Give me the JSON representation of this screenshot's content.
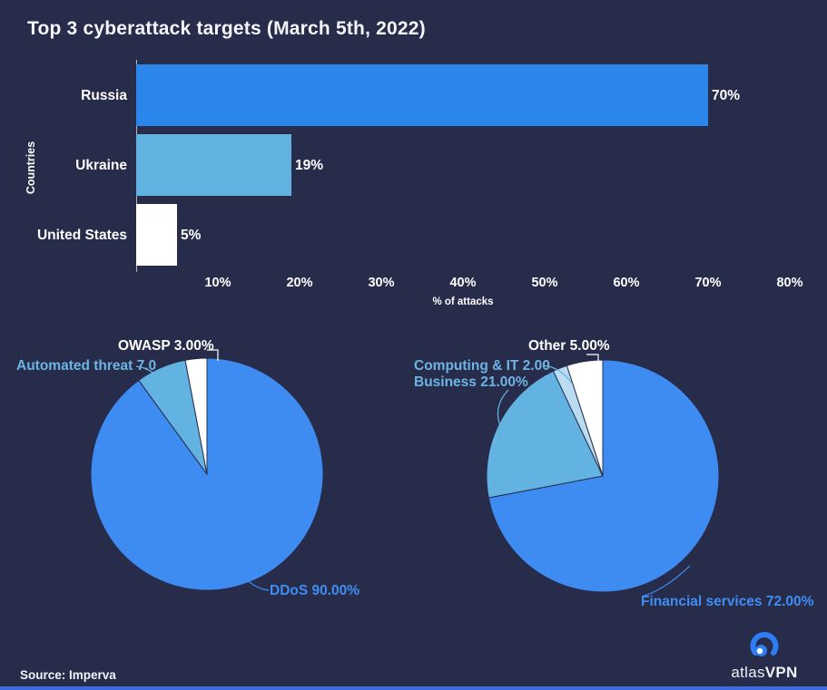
{
  "title": "Top 3 cyberattack targets (March 5th, 2022)",
  "source": "Source: Imperva",
  "logo": {
    "brand_light": "atlas",
    "brand_bold": "VPN"
  },
  "colors": {
    "background": "#282c4b",
    "bar_blue": "#2b86ec",
    "pie_blue": "#3e8bf2",
    "light_blue": "#62b3e2",
    "pale_blue": "#b9dcf1",
    "white": "#ffffff",
    "label_blue": "#3f8df3",
    "label_light_blue": "#6cb5e3",
    "bottom_strip": "#3d6ce0",
    "logo_blue": "#2d7df5"
  },
  "chart_data": [
    {
      "type": "bar",
      "orientation": "horizontal",
      "title": "Top 3 cyberattack targets (March 5th, 2022)",
      "categories": [
        "Russia",
        "Ukraine",
        "United States"
      ],
      "values": [
        70,
        19,
        5
      ],
      "bar_labels": [
        "70%",
        "19%",
        "5%"
      ],
      "bar_colors": [
        "#2b86ec",
        "#62b3e2",
        "#ffffff"
      ],
      "xlabel": "% of attacks",
      "ylabel": "Countries",
      "xlim": [
        0,
        80
      ],
      "xticks": [
        "10%",
        "20%",
        "30%",
        "40%",
        "50%",
        "60%",
        "70%",
        "80%"
      ],
      "grid": false,
      "legend": false
    },
    {
      "type": "pie",
      "name": "attack-types",
      "labels": [
        "DDoS",
        "Automated threat",
        "OWASP"
      ],
      "values": [
        90,
        7,
        3
      ],
      "display_labels": [
        "DDoS 90.00%",
        "Automated threat 7.0",
        "OWASP 3.00%"
      ],
      "slice_colors": [
        "#3e8bf2",
        "#62b3e2",
        "#ffffff"
      ],
      "label_colors": [
        "#3f8df3",
        "#6cb5e3",
        "#ffffff"
      ],
      "start_angle_deg": -90,
      "direction": "clockwise"
    },
    {
      "type": "pie",
      "name": "target-industries",
      "labels": [
        "Financial services",
        "Business",
        "Computing & IT",
        "Other"
      ],
      "values": [
        72,
        21,
        2,
        5
      ],
      "display_labels": [
        "Financial services 72.00%",
        "Business 21.00%",
        "Computing & IT 2.00",
        "Other 5.00%"
      ],
      "slice_colors": [
        "#3e8bf2",
        "#62b3e2",
        "#b9dcf1",
        "#ffffff"
      ],
      "label_colors": [
        "#3f8df3",
        "#6cb5e3",
        "#6cb5e3",
        "#ffffff"
      ],
      "start_angle_deg": -90,
      "direction": "clockwise"
    }
  ]
}
